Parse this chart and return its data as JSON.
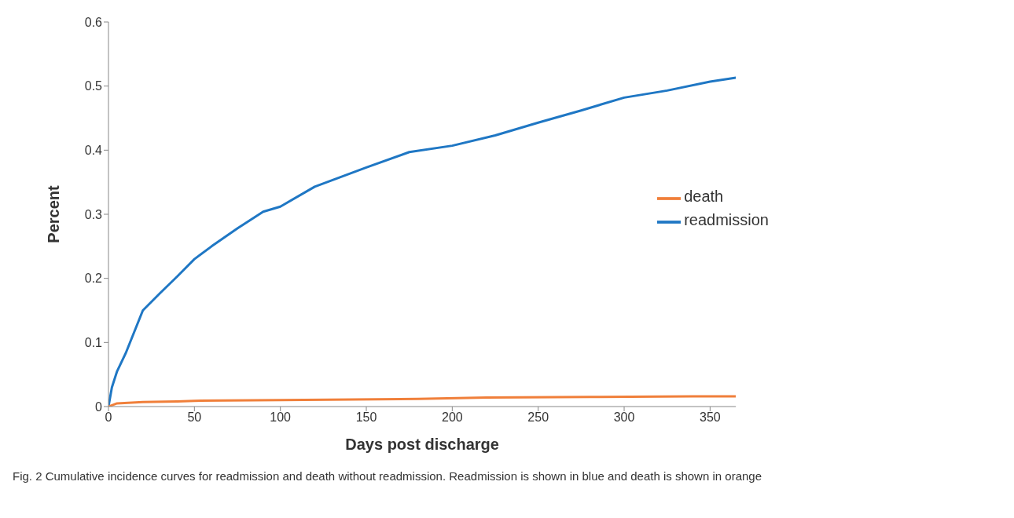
{
  "chart_data": {
    "type": "line",
    "xlabel": "Days post discharge",
    "ylabel": "Percent",
    "annotations": [
      "Fig. 2 Cumulative incidence curves for readmission and death without readmission. Readmission is shown in blue and death is shown in orange"
    ],
    "xlim": [
      0,
      365
    ],
    "xticks": [
      0,
      50,
      100,
      150,
      200,
      250,
      300,
      350
    ],
    "ylim": [
      0,
      0.6
    ],
    "yticks": [
      0,
      0.1,
      0.2,
      0.3,
      0.4,
      0.5,
      0.6
    ],
    "grid": false,
    "legend": "right",
    "marker": "none",
    "line_style": "solid",
    "series": [
      {
        "name": "readmission",
        "color": "#1f77c4",
        "x": [
          0,
          2,
          5,
          10,
          20,
          30,
          40,
          50,
          60,
          75,
          90,
          100,
          120,
          150,
          175,
          200,
          225,
          250,
          275,
          300,
          325,
          350,
          365
        ],
        "values": [
          0,
          0.03,
          0.055,
          0.083,
          0.15,
          0.177,
          0.203,
          0.23,
          0.25,
          0.278,
          0.304,
          0.312,
          0.343,
          0.373,
          0.397,
          0.407,
          0.423,
          0.443,
          0.462,
          0.482,
          0.493,
          0.507,
          0.513
        ]
      },
      {
        "name": "death",
        "color": "#f07f3a",
        "x": [
          0,
          5,
          20,
          40,
          50,
          100,
          180,
          220,
          280,
          340,
          365
        ],
        "values": [
          0,
          0.005,
          0.007,
          0.008,
          0.009,
          0.01,
          0.012,
          0.014,
          0.015,
          0.016,
          0.016
        ]
      }
    ]
  }
}
